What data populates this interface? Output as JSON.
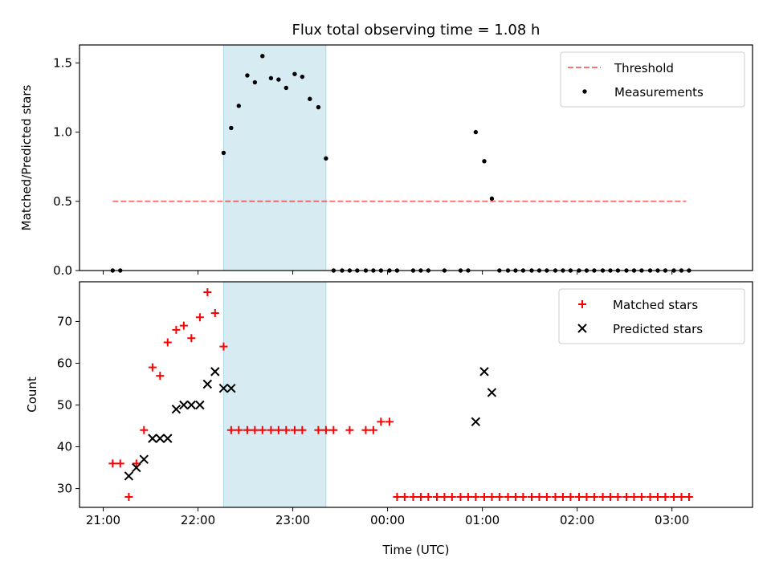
{
  "chart_data": [
    {
      "type": "scatter",
      "title": "Flux total observing time = 1.08 h",
      "xlabel": "",
      "ylabel": "Matched/Predicted stars",
      "xlim": [
        -0.25,
        6.85
      ],
      "ylim": [
        0,
        1.63
      ],
      "xticks": [
        0,
        1,
        2,
        3,
        4,
        5,
        6
      ],
      "yticks": [
        0.0,
        0.5,
        1.0,
        1.5
      ],
      "ytick_labels": [
        "0.0",
        "0.5",
        "1.0",
        "1.5"
      ],
      "shaded_span": [
        1.27,
        2.35
      ],
      "shade_color": "#add8e6",
      "threshold": {
        "name": "Threshold",
        "y": 0.5,
        "x_range": [
          0.1,
          6.15
        ],
        "color": "#ff0000"
      },
      "legend": [
        "Threshold",
        "Measurements"
      ],
      "legend_loc": "upper right",
      "measurements": {
        "x": [
          0.1,
          0.18,
          1.27,
          1.35,
          1.43,
          1.52,
          1.6,
          1.68,
          1.77,
          1.85,
          1.93,
          2.02,
          2.1,
          2.18,
          2.27,
          2.35,
          2.43,
          2.52,
          2.6,
          2.68,
          2.77,
          2.85,
          2.93,
          3.02,
          3.1,
          3.27,
          3.35,
          3.43,
          3.6,
          3.77,
          3.85,
          3.93,
          4.02,
          4.1,
          4.18,
          4.27,
          4.35,
          4.43,
          4.52,
          4.6,
          4.68,
          4.77,
          4.85,
          4.93,
          5.02,
          5.1,
          5.18,
          5.27,
          5.35,
          5.43,
          5.52,
          5.6,
          5.68,
          5.77,
          5.85,
          5.93,
          6.02,
          6.1,
          6.18
        ],
        "y": [
          0,
          0,
          0.85,
          1.03,
          1.19,
          1.41,
          1.36,
          1.55,
          1.39,
          1.38,
          1.32,
          1.42,
          1.4,
          1.24,
          1.18,
          0.81,
          0,
          0,
          0,
          0,
          0,
          0,
          0,
          0,
          0,
          0,
          0,
          0,
          0,
          0,
          0,
          1.0,
          0.79,
          0.52,
          0,
          0,
          0,
          0,
          0,
          0,
          0,
          0,
          0,
          0,
          0,
          0,
          0,
          0,
          0,
          0,
          0,
          0,
          0,
          0,
          0,
          0,
          0,
          0,
          0
        ]
      }
    },
    {
      "type": "scatter",
      "title": "",
      "xlabel": "Time (UTC)",
      "ylabel": "Count",
      "xlim": [
        -0.25,
        6.85
      ],
      "ylim": [
        25.5,
        79.5
      ],
      "xticks": [
        0,
        1,
        2,
        3,
        4,
        5,
        6
      ],
      "xtick_labels": [
        "21:00",
        "22:00",
        "23:00",
        "00:00",
        "01:00",
        "02:00",
        "03:00"
      ],
      "yticks": [
        30,
        40,
        50,
        60,
        70
      ],
      "ytick_labels": [
        "30",
        "40",
        "50",
        "60",
        "70"
      ],
      "shaded_span": [
        1.27,
        2.35
      ],
      "shade_color": "#add8e6",
      "legend": [
        "Matched stars",
        "Predicted stars"
      ],
      "legend_loc": "upper right",
      "series": [
        {
          "name": "Matched stars",
          "marker": "+",
          "color": "#ff0000",
          "x": [
            0.1,
            0.18,
            0.27,
            0.35,
            0.43,
            0.52,
            0.6,
            0.68,
            0.77,
            0.85,
            0.93,
            1.02,
            1.1,
            1.18,
            1.27,
            1.35,
            1.43,
            1.52,
            1.6,
            1.68,
            1.77,
            1.85,
            1.93,
            2.02,
            2.1,
            2.27,
            2.35,
            2.43,
            2.6,
            2.77,
            2.85,
            2.93,
            3.02,
            3.1,
            3.18,
            3.27,
            3.35,
            3.43,
            3.52,
            3.6,
            3.68,
            3.77,
            3.85,
            3.93,
            4.02,
            4.1,
            4.18,
            4.27,
            4.35,
            4.43,
            4.52,
            4.6,
            4.68,
            4.77,
            4.85,
            4.93,
            5.02,
            5.1,
            5.18,
            5.27,
            5.35,
            5.43,
            5.52,
            5.6,
            5.68,
            5.77,
            5.85,
            5.93,
            6.02,
            6.1,
            6.18
          ],
          "y": [
            36,
            36,
            28,
            36,
            44,
            59,
            57,
            65,
            68,
            69,
            66,
            71,
            77,
            72,
            64,
            44,
            44,
            44,
            44,
            44,
            44,
            44,
            44,
            44,
            44,
            44,
            44,
            44,
            44,
            44,
            44,
            46,
            46,
            28,
            28,
            28,
            28,
            28,
            28,
            28,
            28,
            28,
            28,
            28,
            28,
            28,
            28,
            28,
            28,
            28,
            28,
            28,
            28,
            28,
            28,
            28,
            28,
            28,
            28,
            28,
            28,
            28,
            28,
            28,
            28,
            28,
            28,
            28,
            28,
            28,
            28
          ]
        },
        {
          "name": "Predicted stars",
          "marker": "x",
          "color": "#000000",
          "x": [
            0.27,
            0.35,
            0.43,
            0.52,
            0.6,
            0.68,
            0.77,
            0.85,
            0.93,
            1.02,
            1.1,
            1.18,
            1.27,
            1.35,
            3.93,
            4.02,
            4.1
          ],
          "y": [
            33,
            35,
            37,
            42,
            42,
            42,
            49,
            50,
            50,
            50,
            55,
            58,
            54,
            54,
            46,
            58,
            53
          ]
        }
      ]
    }
  ]
}
